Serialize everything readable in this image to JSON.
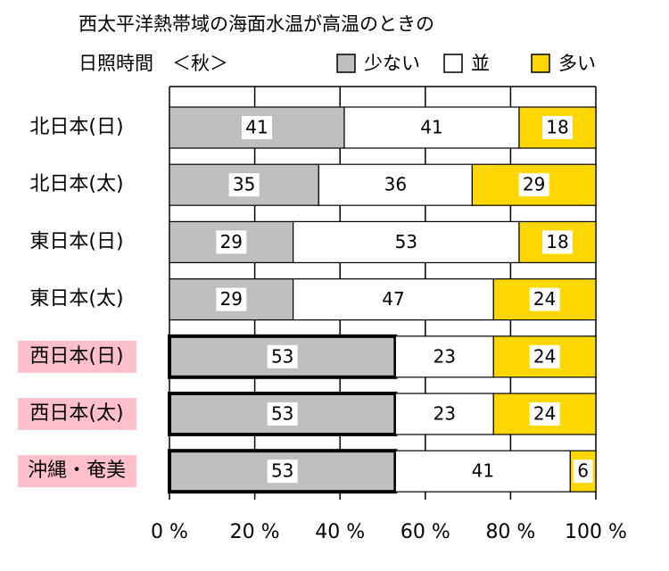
{
  "chart_data": {
    "type": "stacked-bar-horizontal",
    "title": "西太平洋熱帯域の海面水温が高温のときの",
    "subtitle": "日照時間　＜秋＞",
    "categories": [
      "北日本(日)",
      "北日本(太)",
      "東日本(日)",
      "東日本(太)",
      "西日本(日)",
      "西日本(太)",
      "沖縄・奄美"
    ],
    "highlight": [
      false,
      false,
      false,
      false,
      true,
      true,
      true
    ],
    "series": [
      {
        "name": "少ない",
        "color": "#bfbfbf",
        "values": [
          41,
          35,
          29,
          29,
          53,
          53,
          53
        ]
      },
      {
        "name": "並",
        "color": "#ffffff",
        "values": [
          41,
          36,
          53,
          47,
          23,
          23,
          41
        ]
      },
      {
        "name": "多い",
        "color": "#ffd700",
        "values": [
          18,
          29,
          18,
          24,
          24,
          24,
          6
        ]
      }
    ],
    "xlim": [
      0,
      100
    ],
    "xticks": [
      {
        "value": 0,
        "label": "0 %"
      },
      {
        "value": 20,
        "label": "20 %"
      },
      {
        "value": 40,
        "label": "40 %"
      },
      {
        "value": 60,
        "label": "60 %"
      },
      {
        "value": 80,
        "label": "80 %"
      },
      {
        "value": 100,
        "label": "100 %"
      }
    ],
    "grid": true
  }
}
